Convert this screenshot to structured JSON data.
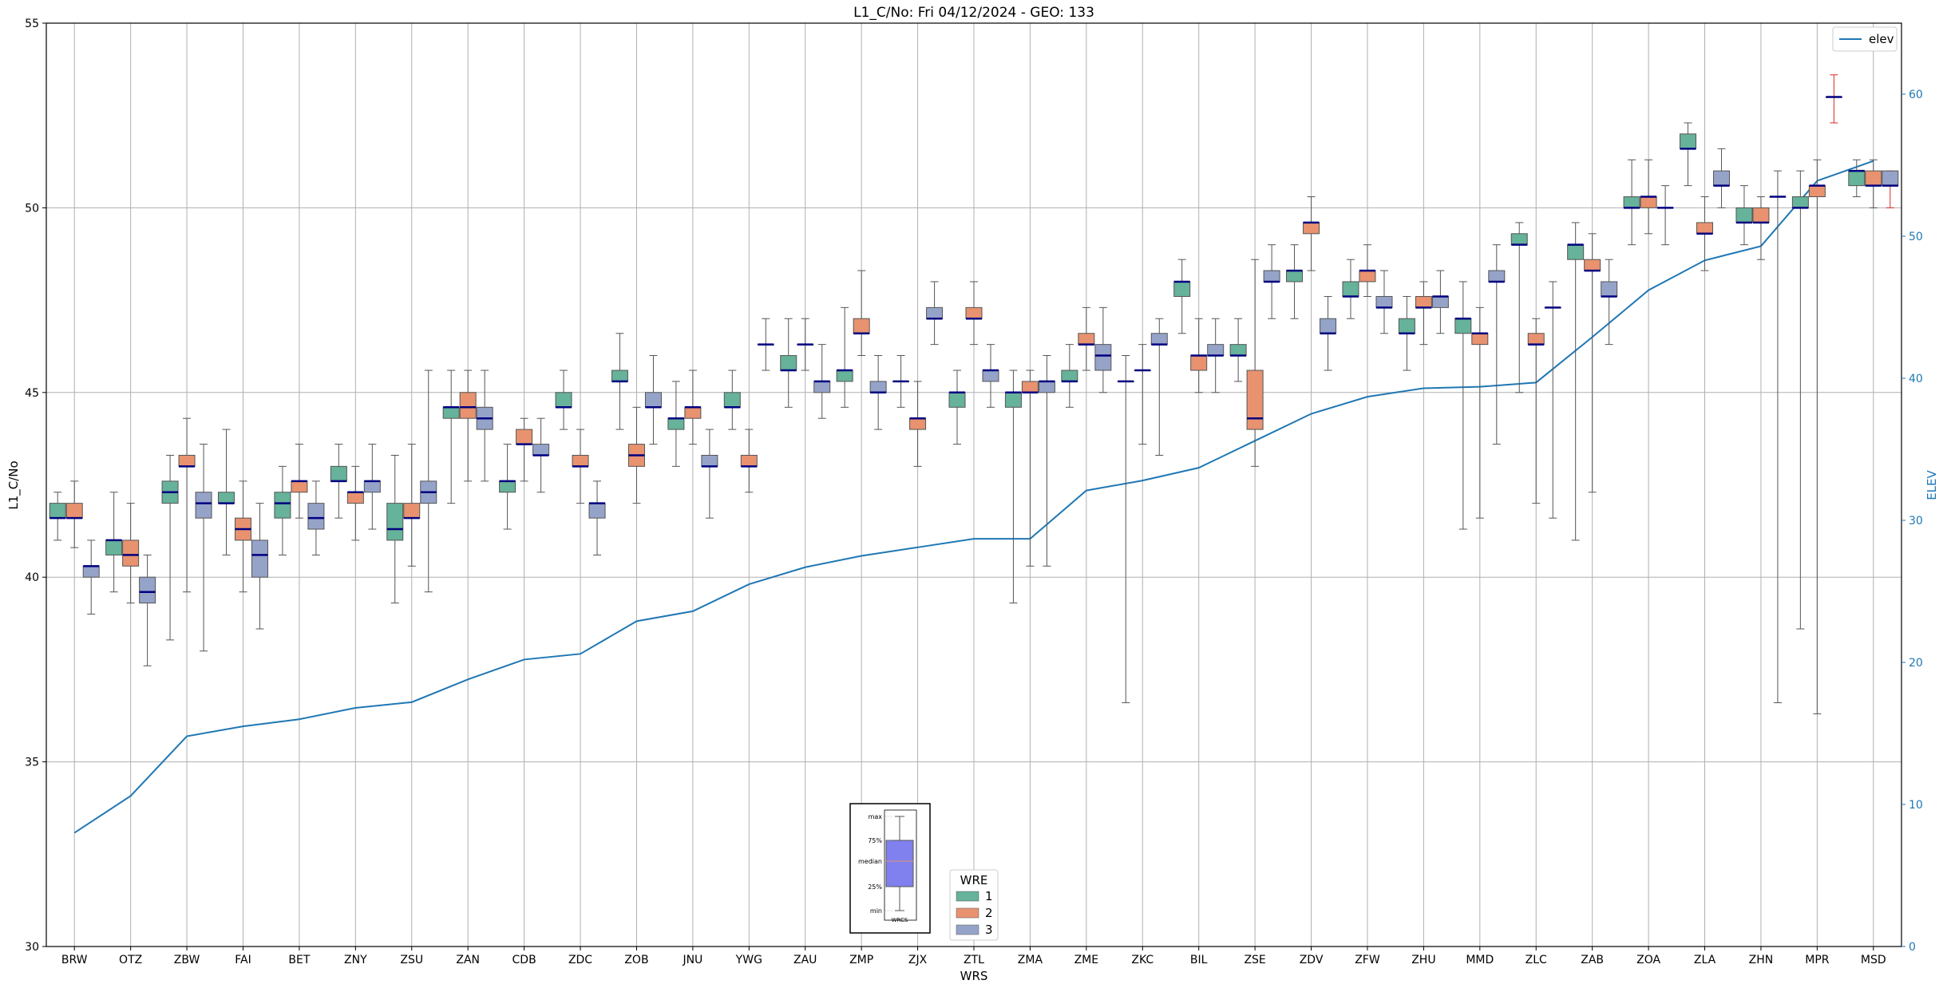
{
  "chart_data": {
    "type": "box",
    "title": "L1_C/No: Fri 04/12/2024 - GEO: 133",
    "xlabel": "WRS",
    "ylabel": "L1_C/No",
    "y2label": "ELEV",
    "ylim": [
      30,
      55
    ],
    "yticks": [
      30,
      35,
      40,
      45,
      50,
      55
    ],
    "y2lim": [
      0,
      65
    ],
    "y2ticks": [
      0,
      10,
      20,
      30,
      40,
      50,
      60
    ],
    "grid": true,
    "categories": [
      "BRW",
      "OTZ",
      "ZBW",
      "FAI",
      "BET",
      "ZNY",
      "ZSU",
      "ZAN",
      "CDB",
      "ZDC",
      "ZOB",
      "JNU",
      "YWG",
      "ZAU",
      "ZMP",
      "ZJX",
      "ZTL",
      "ZMA",
      "ZME",
      "ZKC",
      "BIL",
      "ZSE",
      "ZDV",
      "ZFW",
      "ZHU",
      "MMD",
      "ZLC",
      "ZAB",
      "ZOA",
      "ZLA",
      "ZHN",
      "MPR",
      "MSD"
    ],
    "wre_colors": {
      "1": "#66b29a",
      "2": "#e8926f",
      "3": "#95a3c9"
    },
    "elev_series": {
      "name": "elev",
      "color": "#1f77b4",
      "values": [
        8,
        10.6,
        14.8,
        15.5,
        16,
        16.8,
        17.2,
        18.8,
        20.2,
        20.6,
        22.9,
        23.6,
        25.5,
        26.7,
        27.5,
        28.1,
        28.7,
        28.7,
        32.1,
        32.8,
        33.7,
        35.6,
        37.5,
        38.7,
        39.3,
        39.4,
        39.7,
        42.9,
        46.2,
        48.3,
        49.3,
        53.9,
        55.3
      ]
    },
    "boxes": [
      {
        "station": "BRW",
        "wre": 1,
        "min": 41.0,
        "q1": 41.6,
        "median": 41.6,
        "q3": 42.0,
        "max": 42.3
      },
      {
        "station": "BRW",
        "wre": 2,
        "min": 40.8,
        "q1": 41.6,
        "median": 41.6,
        "q3": 42.0,
        "max": 42.6
      },
      {
        "station": "BRW",
        "wre": 3,
        "min": 39.0,
        "q1": 40.0,
        "median": 40.3,
        "q3": 40.3,
        "max": 41.0
      },
      {
        "station": "OTZ",
        "wre": 1,
        "min": 39.6,
        "q1": 40.6,
        "median": 41.0,
        "q3": 41.0,
        "max": 42.3
      },
      {
        "station": "OTZ",
        "wre": 2,
        "min": 39.3,
        "q1": 40.3,
        "median": 40.6,
        "q3": 41.0,
        "max": 42.0
      },
      {
        "station": "OTZ",
        "wre": 3,
        "min": 37.6,
        "q1": 39.3,
        "median": 39.6,
        "q3": 40.0,
        "max": 40.6
      },
      {
        "station": "ZBW",
        "wre": 1,
        "min": 38.3,
        "q1": 42.0,
        "median": 42.3,
        "q3": 42.6,
        "max": 43.3
      },
      {
        "station": "ZBW",
        "wre": 2,
        "min": 39.6,
        "q1": 43.0,
        "median": 43.0,
        "q3": 43.3,
        "max": 44.3
      },
      {
        "station": "ZBW",
        "wre": 3,
        "min": 38.0,
        "q1": 41.6,
        "median": 42.0,
        "q3": 42.3,
        "max": 43.6
      },
      {
        "station": "FAI",
        "wre": 1,
        "min": 40.6,
        "q1": 42.0,
        "median": 42.0,
        "q3": 42.3,
        "max": 44.0
      },
      {
        "station": "FAI",
        "wre": 2,
        "min": 39.6,
        "q1": 41.0,
        "median": 41.3,
        "q3": 41.6,
        "max": 42.6
      },
      {
        "station": "FAI",
        "wre": 3,
        "min": 38.6,
        "q1": 40.0,
        "median": 40.6,
        "q3": 41.0,
        "max": 42.0
      },
      {
        "station": "BET",
        "wre": 1,
        "min": 40.6,
        "q1": 41.6,
        "median": 42.0,
        "q3": 42.3,
        "max": 43.0
      },
      {
        "station": "BET",
        "wre": 2,
        "min": 41.6,
        "q1": 42.3,
        "median": 42.6,
        "q3": 42.6,
        "max": 43.6
      },
      {
        "station": "BET",
        "wre": 3,
        "min": 40.6,
        "q1": 41.3,
        "median": 41.6,
        "q3": 42.0,
        "max": 42.6
      },
      {
        "station": "ZNY",
        "wre": 1,
        "min": 41.6,
        "q1": 42.6,
        "median": 42.6,
        "q3": 43.0,
        "max": 43.6
      },
      {
        "station": "ZNY",
        "wre": 2,
        "min": 41.0,
        "q1": 42.0,
        "median": 42.3,
        "q3": 42.3,
        "max": 43.0
      },
      {
        "station": "ZNY",
        "wre": 3,
        "min": 41.3,
        "q1": 42.3,
        "median": 42.6,
        "q3": 42.6,
        "max": 43.6
      },
      {
        "station": "ZSU",
        "wre": 1,
        "min": 39.3,
        "q1": 41.0,
        "median": 41.3,
        "q3": 42.0,
        "max": 43.3
      },
      {
        "station": "ZSU",
        "wre": 2,
        "min": 40.3,
        "q1": 41.6,
        "median": 41.6,
        "q3": 42.0,
        "max": 43.6
      },
      {
        "station": "ZSU",
        "wre": 3,
        "min": 39.6,
        "q1": 42.0,
        "median": 42.3,
        "q3": 42.6,
        "max": 45.6
      },
      {
        "station": "ZAN",
        "wre": 1,
        "min": 42.0,
        "q1": 44.3,
        "median": 44.6,
        "q3": 44.6,
        "max": 45.6
      },
      {
        "station": "ZAN",
        "wre": 2,
        "min": 42.6,
        "q1": 44.3,
        "median": 44.6,
        "q3": 45.0,
        "max": 45.6
      },
      {
        "station": "ZAN",
        "wre": 3,
        "min": 42.6,
        "q1": 44.0,
        "median": 44.3,
        "q3": 44.6,
        "max": 45.6
      },
      {
        "station": "CDB",
        "wre": 1,
        "min": 41.3,
        "q1": 42.3,
        "median": 42.6,
        "q3": 42.6,
        "max": 43.6
      },
      {
        "station": "CDB",
        "wre": 2,
        "min": 42.6,
        "q1": 43.6,
        "median": 43.6,
        "q3": 44.0,
        "max": 44.3
      },
      {
        "station": "CDB",
        "wre": 3,
        "min": 42.3,
        "q1": 43.3,
        "median": 43.3,
        "q3": 43.6,
        "max": 44.3
      },
      {
        "station": "ZDC",
        "wre": 1,
        "min": 44.0,
        "q1": 44.6,
        "median": 44.6,
        "q3": 45.0,
        "max": 45.6
      },
      {
        "station": "ZDC",
        "wre": 2,
        "min": 42.0,
        "q1": 43.0,
        "median": 43.0,
        "q3": 43.3,
        "max": 44.0
      },
      {
        "station": "ZDC",
        "wre": 3,
        "min": 40.6,
        "q1": 41.6,
        "median": 42.0,
        "q3": 42.0,
        "max": 42.6
      },
      {
        "station": "ZOB",
        "wre": 1,
        "min": 44.0,
        "q1": 45.3,
        "median": 45.3,
        "q3": 45.6,
        "max": 46.6
      },
      {
        "station": "ZOB",
        "wre": 2,
        "min": 42.0,
        "q1": 43.0,
        "median": 43.3,
        "q3": 43.6,
        "max": 44.6
      },
      {
        "station": "ZOB",
        "wre": 3,
        "min": 43.6,
        "q1": 44.6,
        "median": 44.6,
        "q3": 45.0,
        "max": 46.0
      },
      {
        "station": "JNU",
        "wre": 1,
        "min": 43.0,
        "q1": 44.0,
        "median": 44.3,
        "q3": 44.3,
        "max": 45.3
      },
      {
        "station": "JNU",
        "wre": 2,
        "min": 43.6,
        "q1": 44.3,
        "median": 44.6,
        "q3": 44.6,
        "max": 45.6
      },
      {
        "station": "JNU",
        "wre": 3,
        "min": 41.6,
        "q1": 43.0,
        "median": 43.0,
        "q3": 43.3,
        "max": 44.0
      },
      {
        "station": "YWG",
        "wre": 1,
        "min": 44.0,
        "q1": 44.6,
        "median": 44.6,
        "q3": 45.0,
        "max": 45.6
      },
      {
        "station": "YWG",
        "wre": 2,
        "min": 42.3,
        "q1": 43.0,
        "median": 43.0,
        "q3": 43.3,
        "max": 44.0
      },
      {
        "station": "YWG",
        "wre": 3,
        "min": 45.6,
        "q1": 46.3,
        "median": 46.3,
        "q3": 46.3,
        "max": 47.0
      },
      {
        "station": "ZAU",
        "wre": 1,
        "min": 44.6,
        "q1": 45.6,
        "median": 45.6,
        "q3": 46.0,
        "max": 47.0
      },
      {
        "station": "ZAU",
        "wre": 2,
        "min": 45.6,
        "q1": 46.3,
        "median": 46.3,
        "q3": 46.3,
        "max": 47.0
      },
      {
        "station": "ZAU",
        "wre": 3,
        "min": 44.3,
        "q1": 45.0,
        "median": 45.3,
        "q3": 45.3,
        "max": 46.3
      },
      {
        "station": "ZMP",
        "wre": 1,
        "min": 44.6,
        "q1": 45.3,
        "median": 45.6,
        "q3": 45.6,
        "max": 47.3
      },
      {
        "station": "ZMP",
        "wre": 2,
        "min": 46.0,
        "q1": 46.6,
        "median": 46.6,
        "q3": 47.0,
        "max": 48.3
      },
      {
        "station": "ZMP",
        "wre": 3,
        "min": 44.0,
        "q1": 45.0,
        "median": 45.0,
        "q3": 45.3,
        "max": 46.0
      },
      {
        "station": "ZJX",
        "wre": 1,
        "min": 44.6,
        "q1": 45.3,
        "median": 45.3,
        "q3": 45.3,
        "max": 46.0
      },
      {
        "station": "ZJX",
        "wre": 2,
        "min": 43.0,
        "q1": 44.0,
        "median": 44.3,
        "q3": 44.3,
        "max": 45.3
      },
      {
        "station": "ZJX",
        "wre": 3,
        "min": 46.3,
        "q1": 47.0,
        "median": 47.0,
        "q3": 47.3,
        "max": 48.0
      },
      {
        "station": "ZTL",
        "wre": 1,
        "min": 43.6,
        "q1": 44.6,
        "median": 45.0,
        "q3": 45.0,
        "max": 45.6
      },
      {
        "station": "ZTL",
        "wre": 2,
        "min": 46.3,
        "q1": 47.0,
        "median": 47.0,
        "q3": 47.3,
        "max": 48.0
      },
      {
        "station": "ZTL",
        "wre": 3,
        "min": 44.6,
        "q1": 45.3,
        "median": 45.6,
        "q3": 45.6,
        "max": 46.3
      },
      {
        "station": "ZMA",
        "wre": 1,
        "min": 39.3,
        "q1": 44.6,
        "median": 45.0,
        "q3": 45.0,
        "max": 45.6
      },
      {
        "station": "ZMA",
        "wre": 2,
        "min": 40.3,
        "q1": 45.0,
        "median": 45.0,
        "q3": 45.3,
        "max": 45.6
      },
      {
        "station": "ZMA",
        "wre": 3,
        "min": 40.3,
        "q1": 45.0,
        "median": 45.3,
        "q3": 45.3,
        "max": 46.0
      },
      {
        "station": "ZME",
        "wre": 1,
        "min": 44.6,
        "q1": 45.3,
        "median": 45.3,
        "q3": 45.6,
        "max": 46.3
      },
      {
        "station": "ZME",
        "wre": 2,
        "min": 45.6,
        "q1": 46.3,
        "median": 46.3,
        "q3": 46.6,
        "max": 47.3
      },
      {
        "station": "ZME",
        "wre": 3,
        "min": 45.0,
        "q1": 45.6,
        "median": 46.0,
        "q3": 46.3,
        "max": 47.3
      },
      {
        "station": "ZKC",
        "wre": 1,
        "min": 36.6,
        "q1": 45.3,
        "median": 45.3,
        "q3": 45.3,
        "max": 46.0
      },
      {
        "station": "ZKC",
        "wre": 2,
        "min": 43.6,
        "q1": 45.6,
        "median": 45.6,
        "q3": 45.6,
        "max": 46.3
      },
      {
        "station": "ZKC",
        "wre": 3,
        "min": 43.3,
        "q1": 46.3,
        "median": 46.3,
        "q3": 46.6,
        "max": 47.0
      },
      {
        "station": "BIL",
        "wre": 1,
        "min": 46.6,
        "q1": 47.6,
        "median": 48.0,
        "q3": 48.0,
        "max": 48.6
      },
      {
        "station": "BIL",
        "wre": 2,
        "min": 45.0,
        "q1": 45.6,
        "median": 46.0,
        "q3": 46.0,
        "max": 47.0
      },
      {
        "station": "BIL",
        "wre": 3,
        "min": 45.0,
        "q1": 46.0,
        "median": 46.0,
        "q3": 46.3,
        "max": 47.0
      },
      {
        "station": "ZSE",
        "wre": 1,
        "min": 45.3,
        "q1": 46.0,
        "median": 46.0,
        "q3": 46.3,
        "max": 47.0
      },
      {
        "station": "ZSE",
        "wre": 2,
        "min": 43.0,
        "q1": 44.0,
        "median": 44.3,
        "q3": 45.6,
        "max": 48.6
      },
      {
        "station": "ZSE",
        "wre": 3,
        "min": 47.0,
        "q1": 48.0,
        "median": 48.0,
        "q3": 48.3,
        "max": 49.0
      },
      {
        "station": "ZDV",
        "wre": 1,
        "min": 47.0,
        "q1": 48.0,
        "median": 48.3,
        "q3": 48.3,
        "max": 49.0
      },
      {
        "station": "ZDV",
        "wre": 2,
        "min": 48.3,
        "q1": 49.3,
        "median": 49.6,
        "q3": 49.6,
        "max": 50.3
      },
      {
        "station": "ZDV",
        "wre": 3,
        "min": 45.6,
        "q1": 46.6,
        "median": 46.6,
        "q3": 47.0,
        "max": 47.6
      },
      {
        "station": "ZFW",
        "wre": 1,
        "min": 47.0,
        "q1": 47.6,
        "median": 47.6,
        "q3": 48.0,
        "max": 48.6
      },
      {
        "station": "ZFW",
        "wre": 2,
        "min": 47.6,
        "q1": 48.0,
        "median": 48.3,
        "q3": 48.3,
        "max": 49.0
      },
      {
        "station": "ZFW",
        "wre": 3,
        "min": 46.6,
        "q1": 47.3,
        "median": 47.3,
        "q3": 47.6,
        "max": 48.3
      },
      {
        "station": "ZHU",
        "wre": 1,
        "min": 45.6,
        "q1": 46.6,
        "median": 46.6,
        "q3": 47.0,
        "max": 47.6
      },
      {
        "station": "ZHU",
        "wre": 2,
        "min": 46.3,
        "q1": 47.3,
        "median": 47.3,
        "q3": 47.6,
        "max": 48.0
      },
      {
        "station": "ZHU",
        "wre": 3,
        "min": 46.6,
        "q1": 47.3,
        "median": 47.6,
        "q3": 47.6,
        "max": 48.3
      },
      {
        "station": "MMD",
        "wre": 1,
        "min": 41.3,
        "q1": 46.6,
        "median": 47.0,
        "q3": 47.0,
        "max": 48.0
      },
      {
        "station": "MMD",
        "wre": 2,
        "min": 41.6,
        "q1": 46.3,
        "median": 46.6,
        "q3": 46.6,
        "max": 47.3
      },
      {
        "station": "MMD",
        "wre": 3,
        "min": 43.6,
        "q1": 48.0,
        "median": 48.0,
        "q3": 48.3,
        "max": 49.0
      },
      {
        "station": "ZLC",
        "wre": 1,
        "min": 45.0,
        "q1": 49.0,
        "median": 49.0,
        "q3": 49.3,
        "max": 49.6
      },
      {
        "station": "ZLC",
        "wre": 2,
        "min": 42.0,
        "q1": 46.3,
        "median": 46.3,
        "q3": 46.6,
        "max": 47.0
      },
      {
        "station": "ZLC",
        "wre": 3,
        "min": 41.6,
        "q1": 47.3,
        "median": 47.3,
        "q3": 47.3,
        "max": 48.0
      },
      {
        "station": "ZAB",
        "wre": 1,
        "min": 41.0,
        "q1": 48.6,
        "median": 49.0,
        "q3": 49.0,
        "max": 49.6
      },
      {
        "station": "ZAB",
        "wre": 2,
        "min": 42.3,
        "q1": 48.3,
        "median": 48.3,
        "q3": 48.6,
        "max": 49.3
      },
      {
        "station": "ZAB",
        "wre": 3,
        "min": 46.3,
        "q1": 47.6,
        "median": 47.6,
        "q3": 48.0,
        "max": 48.6
      },
      {
        "station": "ZOA",
        "wre": 1,
        "min": 49.0,
        "q1": 50.0,
        "median": 50.0,
        "q3": 50.3,
        "max": 51.3
      },
      {
        "station": "ZOA",
        "wre": 2,
        "min": 49.3,
        "q1": 50.0,
        "median": 50.3,
        "q3": 50.3,
        "max": 51.3
      },
      {
        "station": "ZOA",
        "wre": 3,
        "min": 49.0,
        "q1": 50.0,
        "median": 50.0,
        "q3": 50.0,
        "max": 50.6
      },
      {
        "station": "ZLA",
        "wre": 1,
        "min": 50.6,
        "q1": 51.6,
        "median": 51.6,
        "q3": 52.0,
        "max": 52.3
      },
      {
        "station": "ZLA",
        "wre": 2,
        "min": 48.3,
        "q1": 49.3,
        "median": 49.3,
        "q3": 49.6,
        "max": 50.3
      },
      {
        "station": "ZLA",
        "wre": 3,
        "min": 50.0,
        "q1": 50.6,
        "median": 50.6,
        "q3": 51.0,
        "max": 51.6
      },
      {
        "station": "ZHN",
        "wre": 1,
        "min": 49.0,
        "q1": 49.6,
        "median": 49.6,
        "q3": 50.0,
        "max": 50.6
      },
      {
        "station": "ZHN",
        "wre": 2,
        "min": 48.6,
        "q1": 49.6,
        "median": 49.6,
        "q3": 50.0,
        "max": 50.3
      },
      {
        "station": "ZHN",
        "wre": 3,
        "min": 36.6,
        "q1": 50.3,
        "median": 50.3,
        "q3": 50.3,
        "max": 51.0
      },
      {
        "station": "MPR",
        "wre": 1,
        "min": 38.6,
        "q1": 50.0,
        "median": 50.0,
        "q3": 50.3,
        "max": 51.0
      },
      {
        "station": "MPR",
        "wre": 2,
        "min": 36.3,
        "q1": 50.3,
        "median": 50.6,
        "q3": 50.6,
        "max": 51.3
      },
      {
        "station": "MPR",
        "wre": 3,
        "min": 52.3,
        "q1": 53.0,
        "median": 53.0,
        "q3": 53.0,
        "max": 53.6
      },
      {
        "station": "MSD",
        "wre": 1,
        "min": 50.3,
        "q1": 50.6,
        "median": 51.0,
        "q3": 51.0,
        "max": 51.3
      },
      {
        "station": "MSD",
        "wre": 2,
        "min": 50.0,
        "q1": 50.6,
        "median": 50.6,
        "q3": 51.0,
        "max": 51.3
      },
      {
        "station": "MSD",
        "wre": 3,
        "min": 50.0,
        "q1": 50.6,
        "median": 50.6,
        "q3": 51.0,
        "max": 51.0
      }
    ],
    "legend_elev": {
      "placement": "top-right",
      "label": "elev"
    },
    "legend_wre": {
      "placement": "bottom-center",
      "title": "WRE",
      "labels": [
        "1",
        "2",
        "3"
      ]
    },
    "box_key": {
      "placement": "bottom-center",
      "labels": [
        "max",
        "75%",
        "median",
        "25%",
        "min"
      ],
      "caption": "WRCS"
    }
  }
}
